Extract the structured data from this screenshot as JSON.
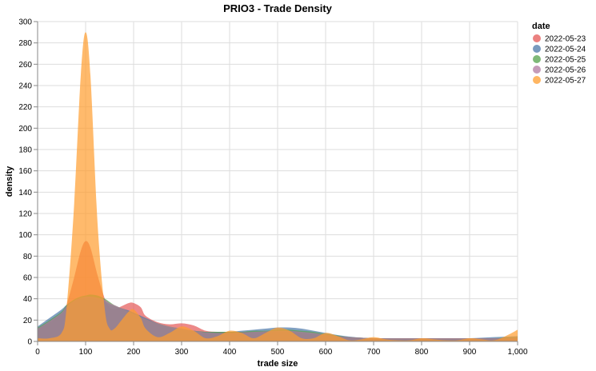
{
  "chart_data": {
    "type": "area",
    "title": "PRIO3 - Trade Density",
    "xlabel": "trade size",
    "ylabel": "density",
    "xlim": [
      0,
      1000
    ],
    "ylim": [
      0,
      300
    ],
    "x_ticks": [
      0,
      100,
      200,
      300,
      400,
      500,
      600,
      700,
      800,
      900,
      1000
    ],
    "x_tick_labels": [
      "0",
      "100",
      "200",
      "300",
      "400",
      "500",
      "600",
      "700",
      "800",
      "900",
      "1,000"
    ],
    "y_ticks": [
      0,
      20,
      40,
      60,
      80,
      100,
      120,
      140,
      160,
      180,
      200,
      220,
      240,
      260,
      280,
      300
    ],
    "y_tick_labels": [
      "0",
      "20",
      "40",
      "60",
      "80",
      "100",
      "120",
      "140",
      "160",
      "180",
      "200",
      "220",
      "240",
      "260",
      "280",
      "300"
    ],
    "grid": true,
    "legend": {
      "title": "date",
      "position": "right"
    },
    "x": [
      0,
      25,
      50,
      60,
      75,
      90,
      100,
      110,
      125,
      140,
      150,
      160,
      175,
      190,
      200,
      215,
      225,
      250,
      275,
      300,
      325,
      350,
      375,
      400,
      425,
      450,
      475,
      500,
      525,
      550,
      575,
      600,
      625,
      650,
      675,
      700,
      725,
      750,
      775,
      800,
      825,
      850,
      875,
      900,
      925,
      950,
      975,
      1000
    ],
    "series": [
      {
        "name": "2022-05-23",
        "color": "#e45756",
        "values": [
          12,
          18,
          26,
          34,
          58,
          85,
          94,
          88,
          62,
          40,
          32,
          30,
          33,
          36,
          36,
          32,
          24,
          18,
          16,
          17,
          15,
          10,
          9,
          9,
          9,
          9,
          9,
          9,
          9,
          8,
          7,
          6,
          5,
          4,
          3.5,
          3,
          3,
          3,
          3,
          3,
          3,
          3,
          3,
          3,
          3,
          3,
          3,
          3
        ]
      },
      {
        "name": "2022-05-24",
        "color": "#4c78a8",
        "values": [
          14,
          22,
          30,
          34,
          38,
          40,
          41,
          41,
          40,
          37,
          35,
          33,
          31,
          29,
          27,
          24,
          22,
          17,
          13,
          11,
          10,
          9,
          9,
          9,
          10,
          11,
          12,
          13,
          13,
          12,
          10,
          8,
          6,
          4.5,
          3.5,
          3,
          3,
          2.5,
          2.5,
          2.5,
          2.5,
          2.5,
          2.5,
          3,
          3.5,
          4,
          4.5,
          5
        ]
      },
      {
        "name": "2022-05-25",
        "color": "#54a24b",
        "values": [
          13,
          20,
          28,
          34,
          39,
          42,
          43,
          44,
          43,
          40,
          37,
          34,
          31,
          28,
          26,
          23,
          21,
          17,
          14,
          12,
          10,
          9,
          9,
          9,
          9,
          10,
          10,
          11,
          11,
          10,
          9,
          7,
          5.5,
          4,
          3.5,
          3,
          3,
          3,
          3,
          3,
          3,
          3,
          3,
          3,
          3,
          3,
          3.5,
          4
        ]
      },
      {
        "name": "2022-05-26",
        "color": "#b279a2",
        "values": [
          12,
          19,
          27,
          33,
          38,
          41,
          42,
          42,
          41,
          39,
          36,
          34,
          31,
          28,
          26,
          23,
          21,
          17,
          14,
          12,
          10,
          8.5,
          8,
          8,
          8.5,
          9,
          9.5,
          10,
          10,
          9,
          8,
          6.5,
          5,
          4,
          3.5,
          3,
          3,
          3,
          3,
          3,
          3,
          3,
          3,
          3,
          3,
          3,
          3,
          3.5
        ]
      },
      {
        "name": "2022-05-27",
        "color": "#ff9d2e",
        "values": [
          3,
          3,
          8,
          30,
          120,
          250,
          290,
          250,
          110,
          30,
          12,
          12,
          20,
          28,
          30,
          22,
          12,
          4,
          8,
          14,
          10,
          3,
          5,
          10,
          8,
          3,
          8,
          13,
          10,
          3,
          3,
          8,
          5,
          1,
          2,
          4,
          2,
          1,
          1,
          3,
          2,
          1,
          1,
          3,
          2,
          1,
          5,
          11
        ]
      }
    ]
  }
}
